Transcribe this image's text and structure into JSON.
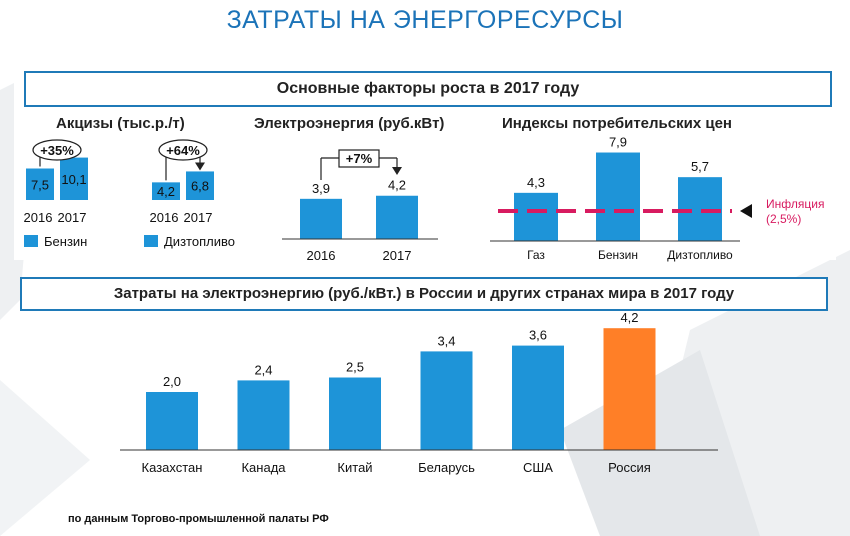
{
  "page": {
    "title": "ЗАТРАТЫ НА ЭНЕРГОРЕСУРСЫ",
    "source": "по данным Торгово-промышленной палаты РФ"
  },
  "colors": {
    "title": "#1b73b8",
    "bar": "#1e94d8",
    "bar_highlight": "#ff7f27",
    "inflation": "#d81b60",
    "frame": "#1f7ab8"
  },
  "top_section": {
    "header": "Основные факторы роста в 2017 году"
  },
  "bottom_section": {
    "header": "Затраты на электроэнергию (руб./кВт.) в России и других странах мира в 2017 году"
  },
  "chart_data": [
    {
      "id": "excise",
      "type": "bar",
      "title": "Акцизы (тыс.р./т)",
      "groups": [
        {
          "name": "Бензин",
          "categories": [
            "2016",
            "2017"
          ],
          "values": [
            7.5,
            10.1
          ],
          "labels": [
            "7,5",
            "10,1"
          ],
          "change": "+35%"
        },
        {
          "name": "Дизтопливо",
          "categories": [
            "2016",
            "2017"
          ],
          "values": [
            4.2,
            6.8
          ],
          "labels": [
            "4,2",
            "6,8"
          ],
          "change": "+64%"
        }
      ]
    },
    {
      "id": "electricity",
      "type": "bar",
      "title": "Электроэнергия (руб.кВт)",
      "categories": [
        "2016",
        "2017"
      ],
      "values": [
        3.9,
        4.2
      ],
      "labels": [
        "3,9",
        "4,2"
      ],
      "change": "+7%"
    },
    {
      "id": "cpi",
      "type": "bar",
      "title": "Индексы потребительских цен",
      "categories": [
        "Газ",
        "Бензин",
        "Дизтопливо"
      ],
      "values": [
        4.3,
        7.9,
        5.7
      ],
      "labels": [
        "4,3",
        "7,9",
        "5,7"
      ],
      "reference_line": {
        "value": 2.5,
        "label_line1": "Инфляция",
        "label_line2": "(2,5%)"
      }
    },
    {
      "id": "countries",
      "type": "bar",
      "categories": [
        "Казахстан",
        "Канада",
        "Китай",
        "Беларусь",
        "США",
        "Россия"
      ],
      "values": [
        2.0,
        2.4,
        2.5,
        3.4,
        3.6,
        4.2
      ],
      "labels": [
        "2,0",
        "2,4",
        "2,5",
        "3,4",
        "3,6",
        "4,2"
      ],
      "highlight": "Россия"
    }
  ]
}
